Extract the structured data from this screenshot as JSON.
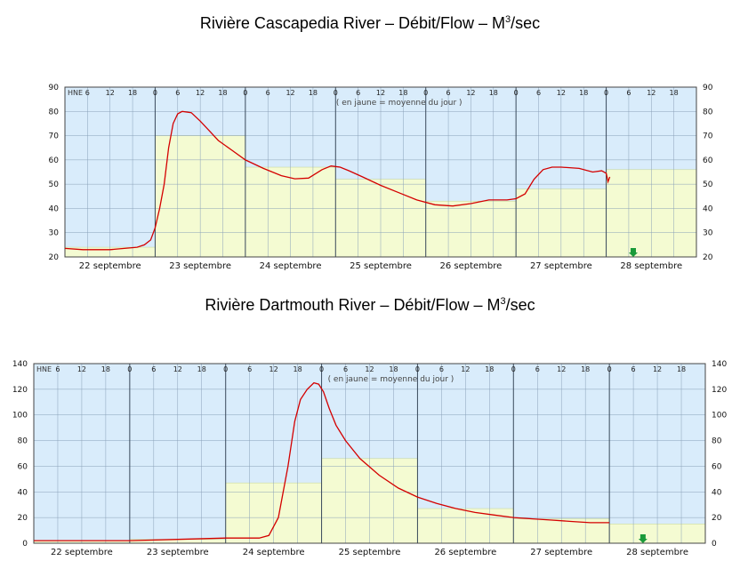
{
  "titles": [
    {
      "main": "Rivière Cascapedia River – Débit/Flow – M",
      "sup": "3",
      "tail": "/sec"
    },
    {
      "main": "Rivière Dartmouth River – Débit/Flow – M",
      "sup": "3",
      "tail": "/sec"
    }
  ],
  "chart_data": [
    {
      "type": "line",
      "title": "Rivière Cascapedia River – Débit/Flow – M3/sec",
      "hne_label": "HNE",
      "note": "( en jaune = moyenne du jour )",
      "hour_ticks": [
        "6",
        "12",
        "18",
        "0",
        "6",
        "12",
        "18",
        "0",
        "6",
        "12",
        "18",
        "0",
        "6",
        "12",
        "18",
        "0",
        "6",
        "12",
        "18",
        "0",
        "6",
        "12",
        "18",
        "0",
        "6",
        "12",
        "18"
      ],
      "day_labels": [
        "22 septembre",
        "23 septembre",
        "24 septembre",
        "25 septembre",
        "26 septembre",
        "27 septembre",
        "28 septembre"
      ],
      "ylim": [
        20,
        90
      ],
      "yticks": [
        20,
        30,
        40,
        50,
        60,
        70,
        80,
        90
      ],
      "grid": true,
      "daily_mean": [
        {
          "day": "22 septembre",
          "value": 24
        },
        {
          "day": "23 septembre",
          "value": 70
        },
        {
          "day": "24 septembre",
          "value": 57
        },
        {
          "day": "25 septembre",
          "value": 52
        },
        {
          "day": "26 septembre",
          "value": 43
        },
        {
          "day": "27 septembre",
          "value": 48
        },
        {
          "day": "28 septembre",
          "value": 56
        }
      ],
      "series": [
        {
          "x_days": [
            0,
            0.2,
            0.5,
            0.8,
            0.88,
            0.95,
            1.0,
            1.05,
            1.1,
            1.15,
            1.2,
            1.25,
            1.3,
            1.4,
            1.5,
            1.6,
            1.7,
            1.85,
            2.0,
            2.2,
            2.4,
            2.55,
            2.7,
            2.85,
            2.95,
            3.05,
            3.15,
            3.3,
            3.5,
            3.7,
            3.9,
            4.1,
            4.3,
            4.5,
            4.7,
            4.9,
            5.0,
            5.1,
            5.2,
            5.3,
            5.4,
            5.5,
            5.7,
            5.85,
            5.95,
            6.0,
            6.02,
            6.04
          ],
          "values": [
            23.5,
            23,
            23,
            24,
            25,
            27,
            32,
            40,
            50,
            65,
            75,
            79,
            80,
            79.5,
            76,
            72,
            68,
            64,
            60,
            56.5,
            53.5,
            52.2,
            52.5,
            56,
            57.5,
            57,
            55.5,
            53,
            49.5,
            46.5,
            43.5,
            41.5,
            41,
            42,
            43.5,
            43.5,
            44,
            46,
            52,
            56,
            57,
            57,
            56.5,
            55,
            55.5,
            54.5,
            51,
            53
          ]
        }
      ],
      "marker_day": 6.3
    },
    {
      "type": "line",
      "title": "Rivière Dartmouth River – Débit/Flow – M3/sec",
      "hne_label": "HNE",
      "note": "( en jaune = moyenne du jour )",
      "hour_ticks": [
        "6",
        "12",
        "18",
        "0",
        "6",
        "12",
        "18",
        "0",
        "6",
        "12",
        "18",
        "0",
        "6",
        "12",
        "18",
        "0",
        "6",
        "12",
        "18",
        "0",
        "6",
        "12",
        "18",
        "0",
        "6",
        "12",
        "18"
      ],
      "day_labels": [
        "22 septembre",
        "23 septembre",
        "24 septembre",
        "25 septembre",
        "26 septembre",
        "27 septembre",
        "28 septembre"
      ],
      "ylim": [
        0,
        140
      ],
      "yticks": [
        0,
        20,
        40,
        60,
        80,
        100,
        120,
        140
      ],
      "grid": true,
      "daily_mean": [
        {
          "day": "22 septembre",
          "value": 2
        },
        {
          "day": "23 septembre",
          "value": 3
        },
        {
          "day": "24 septembre",
          "value": 47
        },
        {
          "day": "25 septembre",
          "value": 66
        },
        {
          "day": "26 septembre",
          "value": 27
        },
        {
          "day": "27 septembre",
          "value": 19
        },
        {
          "day": "28 septembre",
          "value": 15
        }
      ],
      "series": [
        {
          "x_days": [
            0,
            0.5,
            1.0,
            1.5,
            2.0,
            2.2,
            2.35,
            2.45,
            2.55,
            2.65,
            2.72,
            2.78,
            2.85,
            2.92,
            2.97,
            3.02,
            3.08,
            3.15,
            3.25,
            3.4,
            3.6,
            3.8,
            4.0,
            4.2,
            4.4,
            4.6,
            4.8,
            5.0,
            5.2,
            5.4,
            5.6,
            5.8,
            6.0
          ],
          "values": [
            2,
            2,
            2,
            3,
            4,
            4,
            4,
            6,
            20,
            60,
            95,
            112,
            120,
            125,
            124,
            118,
            105,
            92,
            80,
            66,
            53,
            43,
            36,
            31,
            27,
            24,
            22,
            20,
            19,
            18,
            17,
            16,
            16
          ]
        }
      ],
      "marker_day": 6.35
    }
  ]
}
